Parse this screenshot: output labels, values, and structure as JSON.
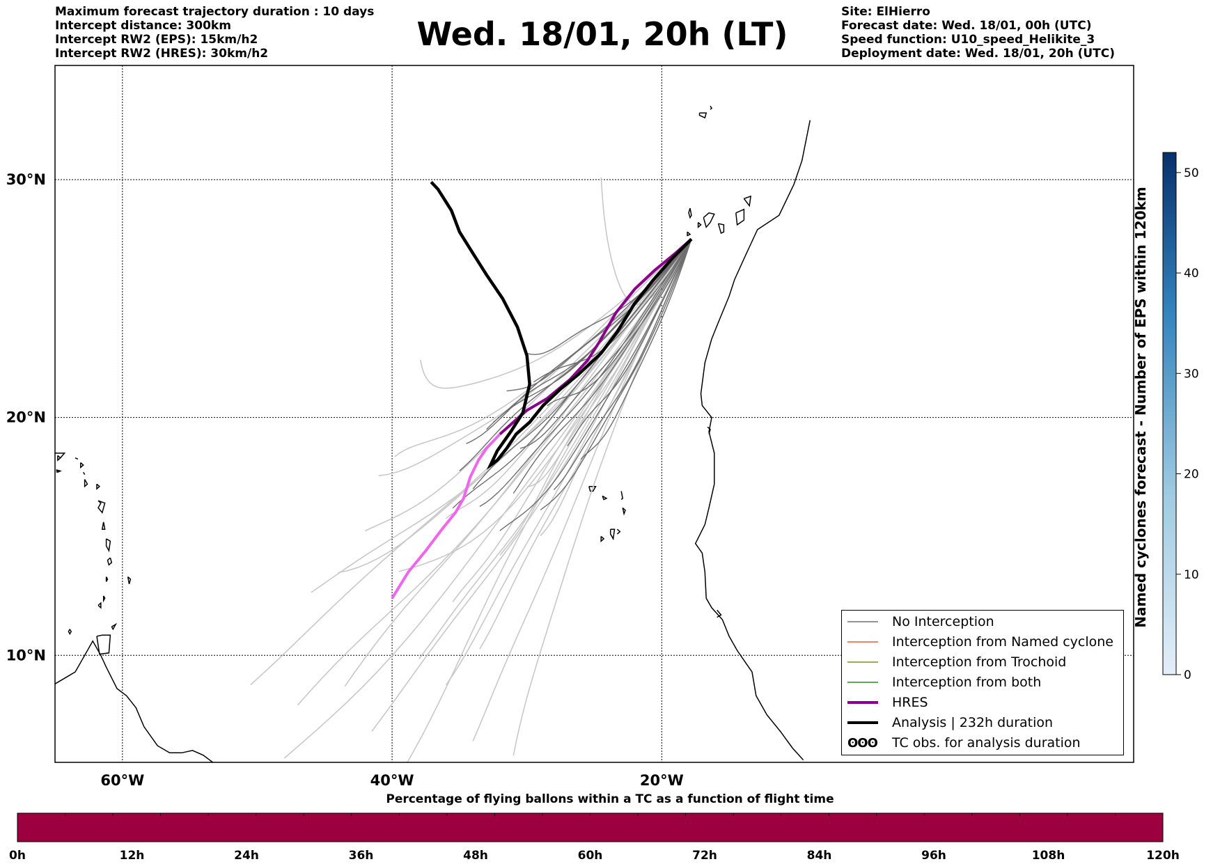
{
  "header_left": [
    "Maximum forecast trajectory duration : 10 days",
    "Intercept distance: 300km",
    "Intercept RW2 (EPS):  15km/h2",
    "Intercept RW2 (HRES): 30km/h2"
  ],
  "title": "Wed. 18/01, 20h (LT)",
  "header_right": [
    "Site: ElHierro",
    "Forecast date: Wed. 18/01, 00h (UTC)",
    "Speed function: U10_speed_Helikite_3",
    "Deployment date: Wed. 18/01, 20h (UTC)"
  ],
  "map": {
    "lon_range": [
      -65,
      15
    ],
    "lat_range": [
      5.5,
      34.8
    ],
    "lat_ticks": [
      "30°N",
      "20°N",
      "10°N"
    ],
    "lon_ticks": [
      "60°W",
      "40°W",
      "20°W"
    ],
    "lat_tick_values": [
      30,
      20,
      10
    ],
    "lon_tick_values": [
      -60,
      -40,
      -20
    ],
    "colors": {
      "no_interception": "#707070",
      "eps_light": "#c8c8c8",
      "named_cyclone": "#e8602c",
      "trochoid": "#808a2a",
      "both": "#2a8a2a",
      "hres": "#8b008b",
      "hres_light": "#ee66ee",
      "analysis": "#000000"
    }
  },
  "legend": [
    {
      "name": "no-interception",
      "label": "No Interception",
      "color": "#707070",
      "width": 1.5
    },
    {
      "name": "named-cyclone",
      "label": "Interception from Named cyclone",
      "color": "#e8602c",
      "width": 1.5
    },
    {
      "name": "trochoid",
      "label": "Interception from Trochoid",
      "color": "#808a2a",
      "width": 1.5
    },
    {
      "name": "both",
      "label": "Interception from both",
      "color": "#2a8a2a",
      "width": 1.5
    },
    {
      "name": "hres",
      "label": "HRES",
      "color": "#8b008b",
      "width": 4
    },
    {
      "name": "analysis",
      "label": "Analysis | 232h duration",
      "color": "#000000",
      "width": 4
    },
    {
      "name": "tc-obs",
      "label": "TC obs. for analysis duration",
      "symbol": "ʘʘʘ"
    }
  ],
  "colorbar_right": {
    "title": "Named cyclones forecast - Number of EPS within 120km",
    "ticks": [
      "0",
      "10",
      "20",
      "30",
      "40",
      "50"
    ],
    "tick_values": [
      0,
      10,
      20,
      30,
      40,
      50
    ],
    "max": 52,
    "color_low": "#e3eef9",
    "color_high": "#08306b"
  },
  "colorbar_bottom": {
    "title": "Percentage of flying ballons within a TC as a function of flight time",
    "ticks": [
      "0h",
      "12h",
      "24h",
      "36h",
      "48h",
      "60h",
      "72h",
      "84h",
      "96h",
      "108h",
      "120h"
    ],
    "color": "#9c003f"
  }
}
